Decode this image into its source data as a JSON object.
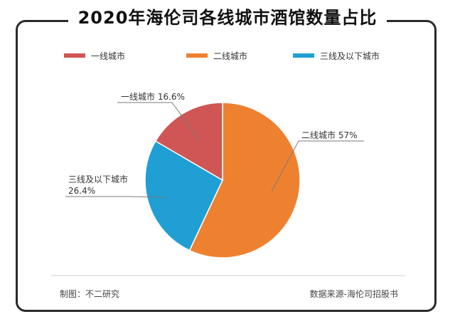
{
  "title": "2020年海伦司各线城市酒馆数量占比",
  "legend": [
    {
      "label": "一线城市",
      "color": "#d05656"
    },
    {
      "label": "二线城市",
      "color": "#ee8130"
    },
    {
      "label": "三线及以下城市",
      "color": "#1f9fd3"
    }
  ],
  "chart_data": {
    "type": "pie",
    "title": "2020年海伦司各线城市酒馆数量占比",
    "categories": [
      "一线城市",
      "二线城市",
      "三线及以下城市"
    ],
    "values": [
      16.6,
      57,
      26.4
    ],
    "unit": "%",
    "colors": [
      "#d05656",
      "#ee8130",
      "#1f9fd3"
    ],
    "labels": [
      "一线城市 16.6%",
      "二线城市 57%"
    ],
    "label_third": [
      "三线及以下城市",
      "26.4%"
    ],
    "legend_position": "top"
  },
  "footer": {
    "credit": "制图：不二研究",
    "source": "数据来源-海伦司招股书"
  }
}
